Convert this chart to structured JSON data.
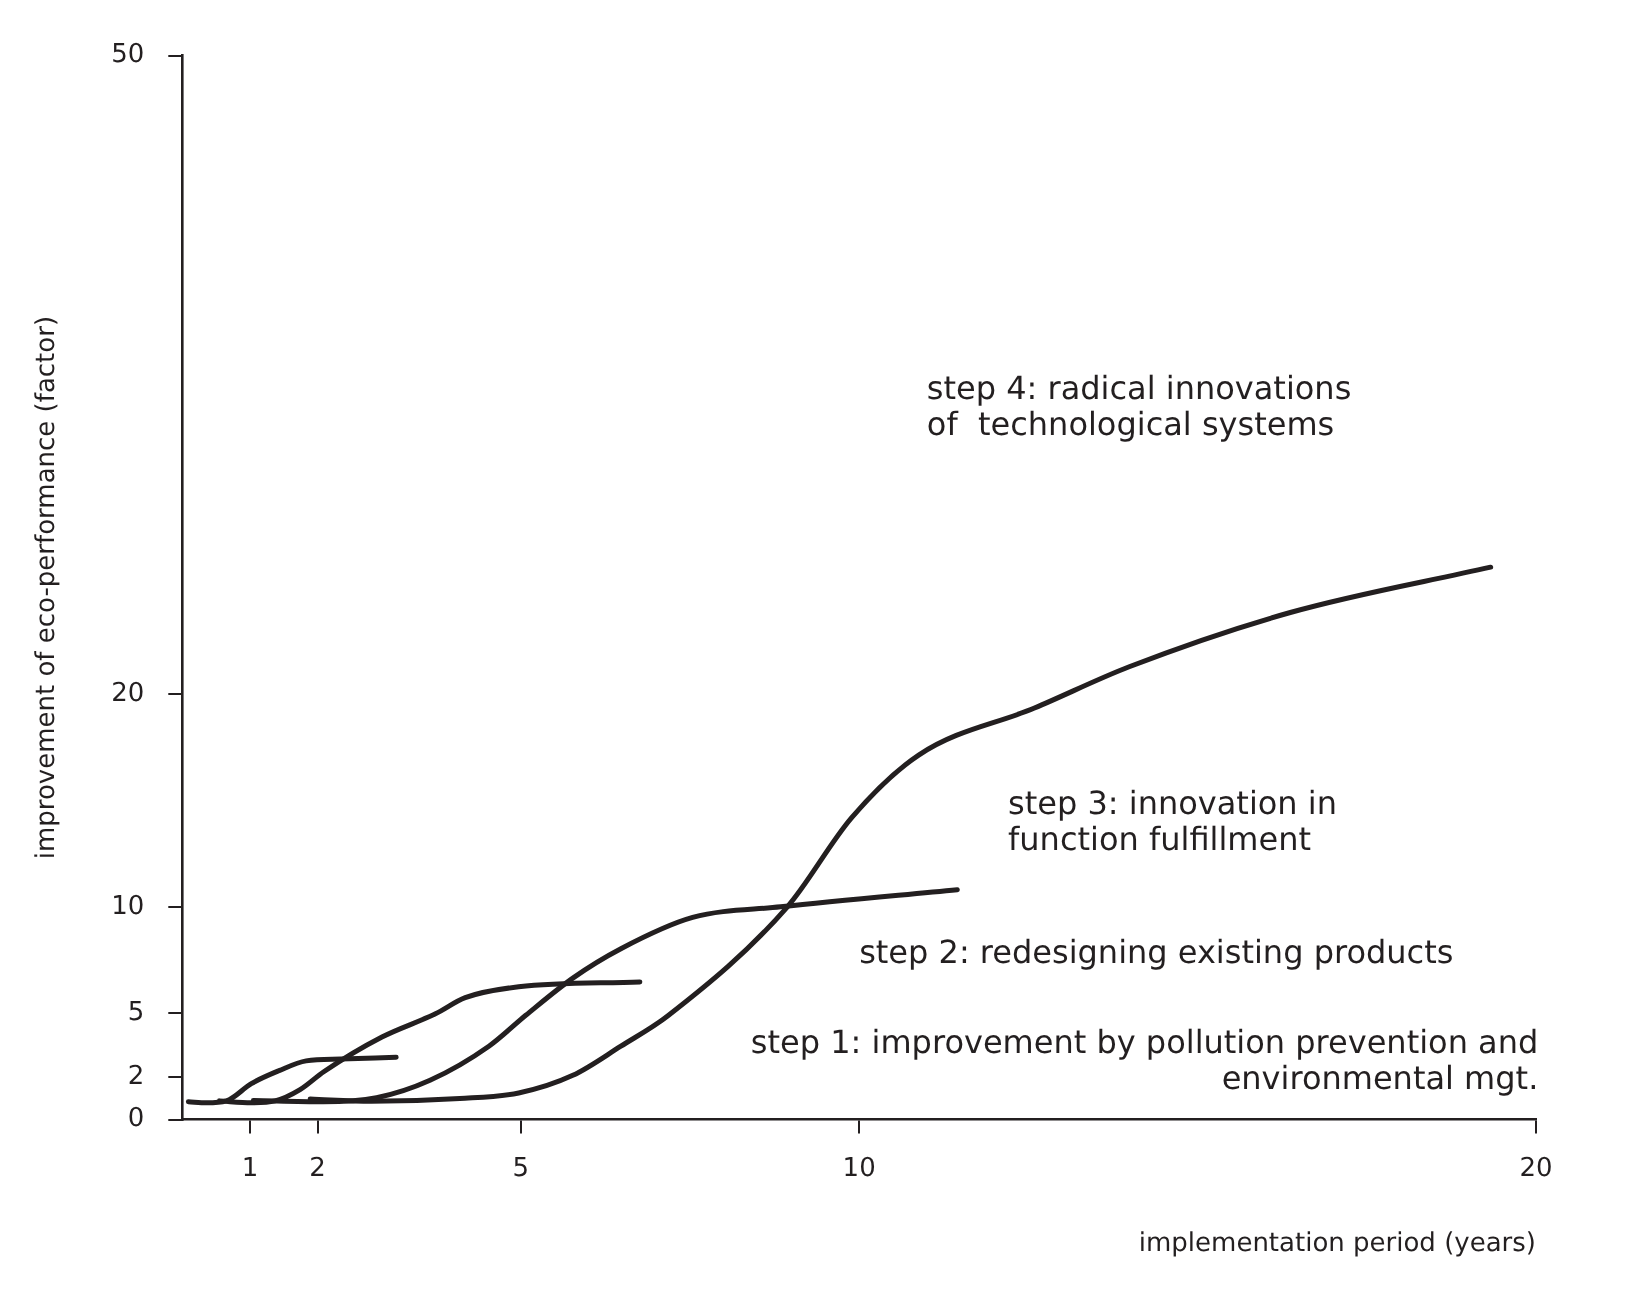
{
  "chart_data": {
    "type": "line",
    "xlabel": "implementation period (years)",
    "ylabel": "improvement of eco-performance (factor)",
    "xlim": [
      0,
      20
    ],
    "xticks": [
      1,
      2,
      5,
      10,
      20
    ],
    "ylim": [
      0,
      50
    ],
    "yticks": [
      0,
      2,
      5,
      10,
      20,
      50
    ],
    "grid": false,
    "legend": false,
    "marker": "none",
    "line_style": "solid",
    "series": [
      {
        "color": "#231f20",
        "x": [
          0.09,
          0.36,
          0.65,
          1.02,
          1.43,
          1.83,
          2.34,
          3.16
        ],
        "values": [
          0.84,
          0.79,
          0.88,
          1.69,
          2.3,
          2.76,
          2.85,
          2.93
        ]
      },
      {
        "color": "#231f20",
        "x": [
          0.55,
          1.02,
          1.37,
          1.74,
          2.09,
          2.95,
          3.74,
          4.18,
          4.97,
          6.76
        ],
        "values": [
          0.88,
          0.79,
          0.88,
          1.41,
          2.25,
          3.88,
          4.97,
          5.73,
          6.24,
          6.47
        ]
      },
      {
        "color": "#231f20",
        "x": [
          1.05,
          2.08,
          2.87,
          3.66,
          4.53,
          5.07,
          5.77,
          6.48,
          7.54,
          8.84,
          11.45
        ],
        "values": [
          0.9,
          0.84,
          1.03,
          1.85,
          3.45,
          4.89,
          6.65,
          8.03,
          9.5,
          10,
          10.8
        ]
      },
      {
        "color": "#231f20",
        "x": [
          1.89,
          2.79,
          4.1,
          4.97,
          5.77,
          6.48,
          7.18,
          8.94,
          9.89,
          10.88,
          12.59,
          13.99,
          16.37,
          19.33
        ],
        "values": [
          0.97,
          0.86,
          0.99,
          1.25,
          2.08,
          3.45,
          4.89,
          10,
          14.19,
          17.13,
          19.34,
          21.28,
          23.83,
          25.96
        ]
      }
    ],
    "annotations": [
      "step 1: improvement by pollution prevention and\nenvironmental mgt.",
      "step 2: redesigning existing products",
      "step 3: innovation in\nfunction fulfillment",
      "step 4: radical innovations\nof  technological systems"
    ]
  }
}
